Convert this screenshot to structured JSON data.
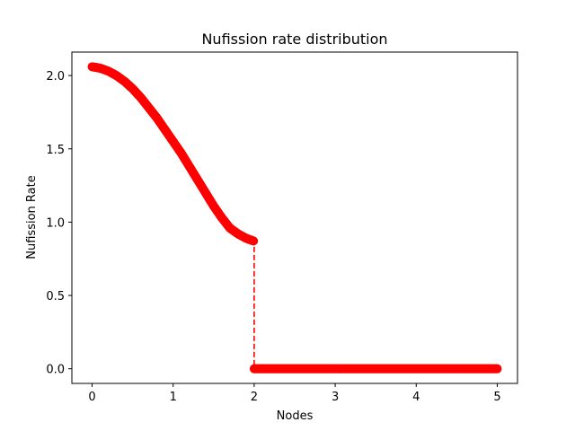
{
  "chart_data": {
    "type": "scatter",
    "title": "Nufission rate distribution",
    "xlabel": "Nodes",
    "ylabel": "Nufission Rate",
    "xlim": [
      -0.25,
      5.25
    ],
    "ylim": [
      -0.1,
      2.16
    ],
    "xticks": [
      0,
      1,
      2,
      3,
      4,
      5
    ],
    "xtick_labels": [
      "0",
      "1",
      "2",
      "3",
      "4",
      "5"
    ],
    "yticks": [
      0.0,
      0.5,
      1.0,
      1.5,
      2.0
    ],
    "ytick_labels": [
      "0.0",
      "0.5",
      "1.0",
      "1.5",
      "2.0"
    ],
    "grid": false,
    "legend": "none",
    "series": [
      {
        "marker": "circle",
        "color": "#ff0000",
        "line": "dashed",
        "x": [
          0,
          0.1,
          0.2,
          0.3,
          0.4,
          0.5,
          0.6,
          0.7,
          0.8,
          0.9,
          1.0,
          1.1,
          1.2,
          1.3,
          1.4,
          1.5,
          1.6,
          1.7,
          1.8,
          1.9,
          2.0,
          2.0,
          2.5,
          3.0,
          3.5,
          4.0,
          4.5,
          5.0
        ],
        "y": [
          2.06,
          2.05,
          2.03,
          2.0,
          1.96,
          1.91,
          1.85,
          1.78,
          1.71,
          1.63,
          1.55,
          1.47,
          1.38,
          1.29,
          1.2,
          1.11,
          1.03,
          0.96,
          0.92,
          0.89,
          0.87,
          0.0,
          0.0,
          0.0,
          0.0,
          0.0,
          0.0,
          0.0
        ]
      }
    ]
  }
}
